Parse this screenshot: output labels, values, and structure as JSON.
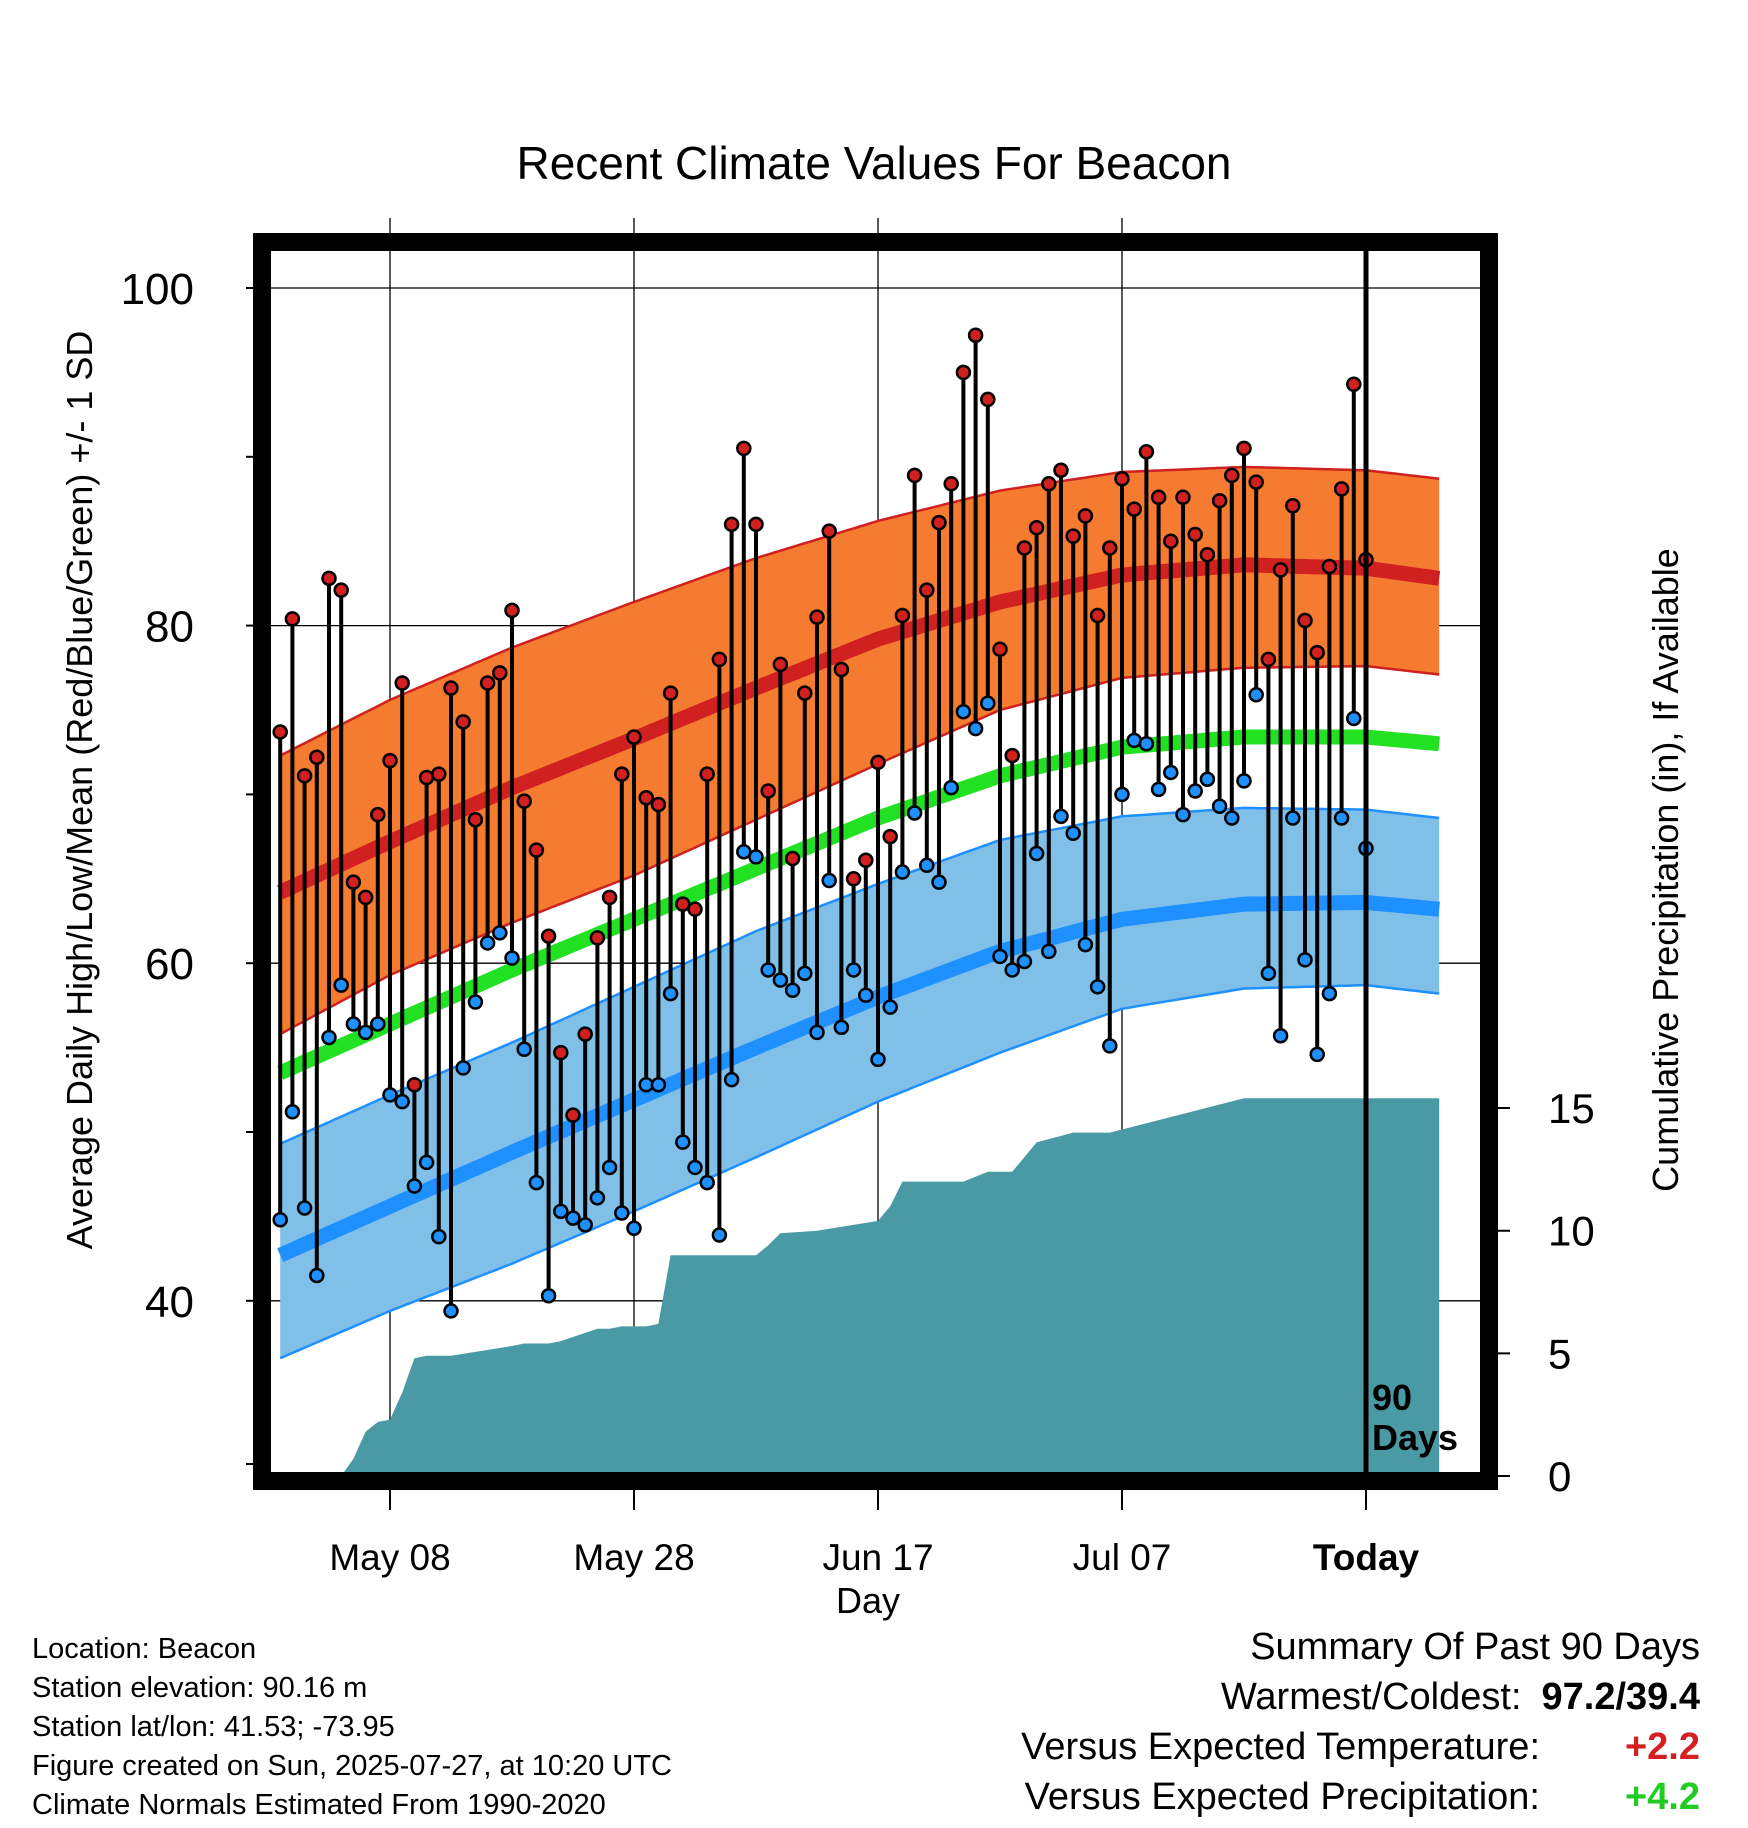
{
  "chart_data": {
    "type": "line",
    "title": "Recent Climate Values For Beacon",
    "xlabel": "Day",
    "ylabel": "Average Daily High/Low/Mean (Red/Blue/Green) +/- 1 SD",
    "y2label": "Cumulative Precipitation (in), If Available",
    "ylim": [
      30,
      103
    ],
    "y2lim": [
      0,
      30
    ],
    "y_ticks": [
      40,
      60,
      80,
      100
    ],
    "y2_ticks": [
      0,
      5,
      10,
      15
    ],
    "x_range_days": [
      -89,
      6
    ],
    "x_ticks": [
      {
        "day": -80,
        "label": "May 08"
      },
      {
        "day": -60,
        "label": "May 28"
      },
      {
        "day": -40,
        "label": "Jun 17"
      },
      {
        "day": -20,
        "label": "Jul 07"
      },
      {
        "day": 0,
        "label": "Today"
      }
    ],
    "today_marker": "90\nDays",
    "normals": {
      "days": [
        -89,
        -80,
        -70,
        -60,
        -50,
        -40,
        -30,
        -20,
        -10,
        0,
        6
      ],
      "high_mean": [
        64.2,
        67.2,
        70.4,
        73.3,
        76.3,
        79.2,
        81.4,
        83.0,
        83.6,
        83.4,
        82.8
      ],
      "high_sd_upper": [
        72.3,
        75.6,
        78.7,
        81.4,
        84.0,
        86.2,
        88.0,
        89.1,
        89.4,
        89.2,
        88.7
      ],
      "high_sd_lower": [
        55.8,
        59.3,
        62.4,
        65.2,
        68.5,
        71.8,
        75.0,
        76.9,
        77.5,
        77.6,
        77.1
      ],
      "daily_mean": [
        53.5,
        56.4,
        59.6,
        62.6,
        65.6,
        68.6,
        71.1,
        72.8,
        73.4,
        73.4,
        73.0
      ],
      "low_mean": [
        42.7,
        45.6,
        48.8,
        51.9,
        55.0,
        58.0,
        60.7,
        62.6,
        63.5,
        63.6,
        63.2
      ],
      "low_sd_upper": [
        49.3,
        52.2,
        55.3,
        58.6,
        61.9,
        64.7,
        67.3,
        68.7,
        69.2,
        69.1,
        68.6
      ],
      "low_sd_lower": [
        36.6,
        39.4,
        42.2,
        45.3,
        48.5,
        51.8,
        54.7,
        57.3,
        58.5,
        58.7,
        58.2
      ]
    },
    "daily_high": [
      73.7,
      80.4,
      71.1,
      72.2,
      82.8,
      82.1,
      64.8,
      63.9,
      68.8,
      72.0,
      76.6,
      52.8,
      71.0,
      71.2,
      76.3,
      74.3,
      68.5,
      76.6,
      77.2,
      80.9,
      69.6,
      66.7,
      61.6,
      54.7,
      51.0,
      55.8,
      61.5,
      63.9,
      71.2,
      73.4,
      69.8,
      69.4,
      76.0,
      63.5,
      63.2,
      71.2,
      78.0,
      86.0,
      90.5,
      86.0,
      70.2,
      77.7,
      66.2,
      76.0,
      80.5,
      85.6,
      77.4,
      65.0,
      66.1,
      71.9,
      67.5,
      80.6,
      88.9,
      82.1,
      86.1,
      88.4,
      95.0,
      97.2,
      93.4,
      78.6,
      72.3,
      84.6,
      85.8,
      88.4,
      89.2,
      85.3,
      86.5,
      80.6,
      84.6,
      88.7,
      86.9,
      90.3,
      87.6,
      85.0,
      87.6,
      85.4,
      84.2,
      87.4,
      88.9,
      90.5,
      88.5,
      78.0,
      83.3,
      87.1,
      80.3,
      78.4,
      83.5,
      88.1,
      94.3,
      83.9
    ],
    "daily_low": [
      44.8,
      51.2,
      45.5,
      41.5,
      55.6,
      58.7,
      56.4,
      55.9,
      56.4,
      52.2,
      51.8,
      46.8,
      48.2,
      43.8,
      39.4,
      53.8,
      57.7,
      61.2,
      61.8,
      60.3,
      54.9,
      47.0,
      40.3,
      45.3,
      44.9,
      44.5,
      46.1,
      47.9,
      45.2,
      44.3,
      52.8,
      52.8,
      58.2,
      49.4,
      47.9,
      47.0,
      43.9,
      53.1,
      66.6,
      66.3,
      59.6,
      59.0,
      58.4,
      59.4,
      55.9,
      64.9,
      56.2,
      59.6,
      58.1,
      54.3,
      57.4,
      65.4,
      68.9,
      65.8,
      64.8,
      70.4,
      74.9,
      73.9,
      75.4,
      60.4,
      59.6,
      60.1,
      66.5,
      60.7,
      68.7,
      67.7,
      61.1,
      58.6,
      55.1,
      70.0,
      73.2,
      73.0,
      70.3,
      71.3,
      68.8,
      70.2,
      70.9,
      69.3,
      68.6,
      70.8,
      75.9,
      59.4,
      55.7,
      68.6,
      60.2,
      54.6,
      58.2,
      68.6,
      74.5,
      66.8
    ],
    "cumulative_precip": {
      "days": [
        -89,
        -84,
        -83,
        -82,
        -81,
        -80,
        -79,
        -78,
        -77,
        -76,
        -75,
        -70,
        -69,
        -67,
        -66,
        -63,
        -62,
        -61,
        -60,
        -59,
        -58,
        -57,
        -50,
        -49,
        -48,
        -45,
        -40,
        -39,
        -38,
        -37,
        -35,
        -33,
        -31,
        -30,
        -29,
        -27,
        -24,
        -23,
        -21,
        -10,
        -9,
        -6,
        -2,
        6
      ],
      "values": [
        0,
        0,
        0.7,
        1.8,
        2.2,
        2.3,
        3.4,
        4.8,
        4.9,
        4.9,
        4.9,
        5.3,
        5.4,
        5.4,
        5.5,
        6.0,
        6.0,
        6.1,
        6.1,
        6.1,
        6.2,
        9.0,
        9.0,
        9.4,
        9.9,
        10.0,
        10.4,
        11.0,
        12.0,
        12.0,
        12.0,
        12.0,
        12.4,
        12.4,
        12.4,
        13.6,
        14.0,
        14.0,
        14.0,
        15.4,
        15.4,
        15.4,
        15.4,
        15.4
      ]
    }
  },
  "colors": {
    "high_band": "#f47b30",
    "high_line": "#d02020",
    "high_band_edge": "#d02020",
    "mean_line": "#22e022",
    "low_band": "#80c0e8",
    "low_line": "#1e90ff",
    "low_band_edge": "#1e90ff",
    "precip_fill": "#4a9aa5",
    "high_dot": "#d02020",
    "low_dot": "#1e90ff",
    "positive_temp": "#d42020",
    "positive_precip": "#22cc22"
  },
  "info": {
    "location": "Location: Beacon",
    "elevation": "Station elevation: 90.16 m",
    "latlon": "Station lat/lon: 41.53; -73.95",
    "created": "Figure created on Sun, 2025-07-27, at 10:20 UTC",
    "normals": "Climate Normals Estimated From 1990-2020"
  },
  "summary": {
    "title": "Summary Of Past 90 Days",
    "warm_cold_label": "Warmest/Coldest:",
    "warm_cold_value": "97.2/39.4",
    "temp_label": "Versus Expected Temperature:",
    "temp_value": "+2.2",
    "precip_label": "Versus Expected Precipitation:",
    "precip_value": "+4.2"
  }
}
